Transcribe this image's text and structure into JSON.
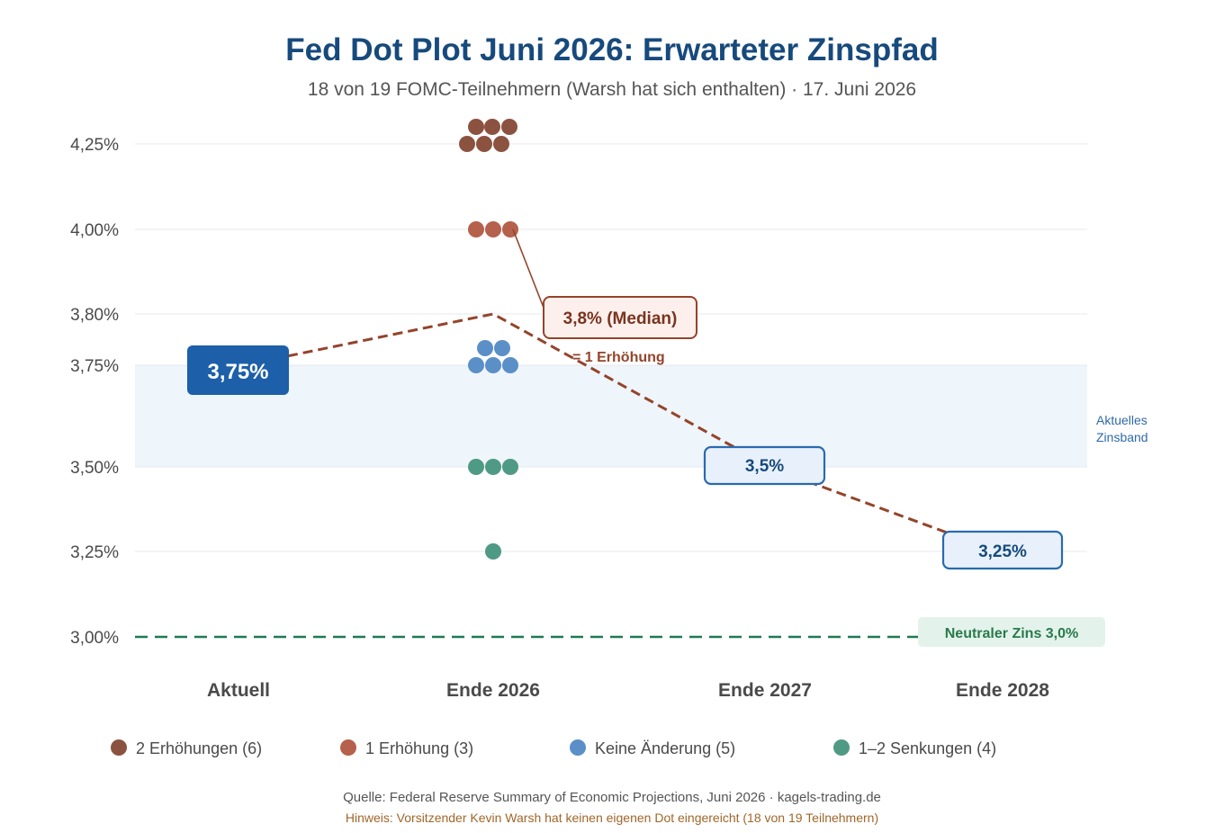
{
  "title": "Fed Dot Plot Juni 2026: Erwarteter Zinspfad",
  "subtitle": "18 von 19 FOMC-Teilnehmern (Warsh hat sich enthalten) · 17. Juni 2026",
  "colors": {
    "title": "#174a7c",
    "two_hikes": "#8c5240",
    "one_hike": "#b5614c",
    "no_change": "#5b8fc7",
    "cuts": "#4f9a84",
    "median_line": "#94442a",
    "neutral": "#1e7a55",
    "current_box": "#1d5fa8",
    "band": "#eef5fb"
  },
  "chart_data": {
    "type": "scatter",
    "x_categories": [
      "Aktuell",
      "Ende 2026",
      "Ende 2027",
      "Ende 2028"
    ],
    "y_ticks": [
      "4,25%",
      "4,00%",
      "3,80%",
      "3,75%",
      "3,50%",
      "3,25%",
      "3,00%"
    ],
    "y_tick_values": [
      4.25,
      4.0,
      3.8,
      3.75,
      3.5,
      3.25,
      3.0
    ],
    "ylim": [
      3.0,
      4.25
    ],
    "series": [
      {
        "name": "2 Erhöhungen (6)",
        "color_key": "two_hikes",
        "category": "Ende 2026",
        "y": 4.25,
        "count": 6
      },
      {
        "name": "1 Erhöhung (3)",
        "color_key": "one_hike",
        "category": "Ende 2026",
        "y": 4.0,
        "count": 3
      },
      {
        "name": "Keine Änderung (5)",
        "color_key": "no_change",
        "category": "Ende 2026",
        "y": 3.75,
        "count": 5
      },
      {
        "name": "1–2 Senkungen (4)",
        "color_key": "cuts",
        "category": "Ende 2026",
        "y": 3.5,
        "count": 3
      },
      {
        "name": "1–2 Senkungen (4)",
        "color_key": "cuts",
        "category": "Ende 2026",
        "y": 3.25,
        "count": 1
      }
    ],
    "median_path": {
      "x": [
        "Aktuell",
        "Ende 2026",
        "Ende 2027",
        "Ende 2028"
      ],
      "y": [
        3.75,
        3.8,
        3.5,
        3.25
      ]
    },
    "neutral_rate": 3.0,
    "current_band": [
      3.5,
      3.75
    ],
    "annotations": {
      "current": "3,75%",
      "median_2026": "3,8% (Median)",
      "median_2026_note": "= 1 Erhöhung",
      "end_2027": "3,5%",
      "end_2028": "3,25%",
      "band_label_line1": "Aktuelles",
      "band_label_line2": "Zinsband",
      "neutral_label": "Neutraler Zins 3,0%"
    },
    "legend": [
      {
        "label": "2 Erhöhungen (6)",
        "color_key": "two_hikes"
      },
      {
        "label": "1 Erhöhung (3)",
        "color_key": "one_hike"
      },
      {
        "label": "Keine Änderung (5)",
        "color_key": "no_change"
      },
      {
        "label": "1–2 Senkungen (4)",
        "color_key": "cuts"
      }
    ],
    "grid": true
  },
  "footer": {
    "source": "Quelle: Federal Reserve Summary of Economic Projections, Juni 2026 · kagels-trading.de",
    "note": "Hinweis: Vorsitzender Kevin Warsh hat keinen eigenen Dot eingereicht (18 von 19 Teilnehmern)"
  }
}
